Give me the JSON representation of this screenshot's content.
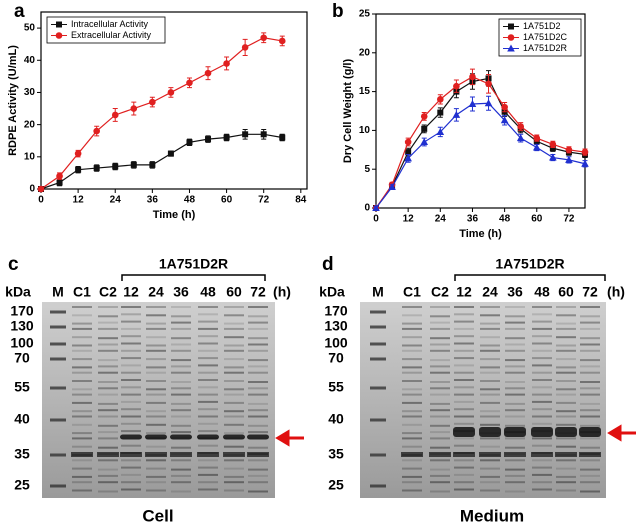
{
  "chart_data": [
    {
      "type": "line",
      "label": "a",
      "xlabel": "Time (h)",
      "ylabel": "RDPE Activity (U/mL)",
      "xlim": [
        0,
        86
      ],
      "xticks": [
        0,
        12,
        24,
        36,
        48,
        60,
        72,
        84
      ],
      "ylim": [
        0,
        55
      ],
      "yticks": [
        0,
        10,
        20,
        30,
        40,
        50
      ],
      "legend": "top-left",
      "x": [
        0,
        6,
        12,
        18,
        24,
        30,
        36,
        42,
        48,
        54,
        60,
        66,
        72,
        78
      ],
      "series": [
        {
          "name": "Intracellular Activity",
          "color": "#111111",
          "marker": "square",
          "values": [
            0,
            2,
            6,
            6.5,
            7,
            7.5,
            7.5,
            11,
            14.5,
            15.5,
            16,
            17,
            17,
            16
          ],
          "errors": [
            0.3,
            1,
            1,
            1,
            1,
            1,
            1,
            0.8,
            1,
            1,
            1,
            1.5,
            1.5,
            1
          ]
        },
        {
          "name": "Extracellular Activity",
          "color": "#e02020",
          "marker": "circle",
          "values": [
            0,
            4,
            11,
            18,
            23,
            25,
            27,
            30,
            33,
            36,
            39,
            44,
            47,
            46
          ],
          "errors": [
            0.3,
            1,
            1,
            1.5,
            2,
            2,
            1.5,
            1.5,
            1.5,
            2,
            2,
            2.5,
            1.5,
            1.5
          ]
        }
      ]
    },
    {
      "type": "line",
      "label": "b",
      "xlabel": "Time (h)",
      "ylabel": "Dry Cell Weight (g/l)",
      "xlim": [
        0,
        78
      ],
      "xticks": [
        0,
        12,
        24,
        36,
        48,
        60,
        72
      ],
      "ylim": [
        0,
        25
      ],
      "yticks": [
        0,
        5,
        10,
        15,
        20,
        25
      ],
      "legend": "top-right",
      "x": [
        0,
        6,
        12,
        18,
        24,
        30,
        36,
        42,
        48,
        54,
        60,
        66,
        72,
        78
      ],
      "series": [
        {
          "name": "1A751D2",
          "color": "#111111",
          "marker": "square",
          "values": [
            0,
            2.8,
            7.2,
            10.2,
            12.3,
            15,
            16.3,
            16.7,
            12.4,
            10.2,
            8.6,
            7.7,
            7.2,
            6.9
          ],
          "errors": [
            0.2,
            0.3,
            0.5,
            0.5,
            0.6,
            0.8,
            1,
            1,
            0.6,
            0.5,
            0.4,
            0.4,
            0.4,
            0.4
          ]
        },
        {
          "name": "1A751D2C",
          "color": "#e02020",
          "marker": "circle",
          "values": [
            0,
            3,
            8.5,
            11.8,
            14,
            15.7,
            16.9,
            16,
            13,
            10.5,
            9,
            8.2,
            7.5,
            7.2
          ],
          "errors": [
            0.2,
            0.3,
            0.5,
            0.5,
            0.6,
            0.8,
            1,
            1.2,
            0.6,
            0.5,
            0.4,
            0.4,
            0.4,
            0.4
          ]
        },
        {
          "name": "1A751D2R",
          "color": "#2030d0",
          "marker": "triangle",
          "values": [
            0,
            2.7,
            6.4,
            8.5,
            9.8,
            12,
            13.4,
            13.5,
            11.3,
            9,
            7.8,
            6.5,
            6.2,
            5.7
          ],
          "errors": [
            0.2,
            0.3,
            0.5,
            0.5,
            0.6,
            0.8,
            0.9,
            0.9,
            0.6,
            0.5,
            0.4,
            0.4,
            0.4,
            0.4
          ]
        }
      ]
    }
  ],
  "gels": [
    {
      "label": "c",
      "group": "1A751D2R",
      "unit": "kDa",
      "hours_unit": "(h)",
      "lanes": [
        "M",
        "C1",
        "C2",
        "12",
        "24",
        "36",
        "48",
        "60",
        "72"
      ],
      "markers": [
        170,
        130,
        100,
        70,
        55,
        40,
        35,
        25
      ],
      "caption": "Cell"
    },
    {
      "label": "d",
      "group": "1A751D2R",
      "unit": "kDa",
      "hours_unit": "(h)",
      "lanes": [
        "M",
        "C1",
        "C2",
        "12",
        "24",
        "36",
        "48",
        "60",
        "72"
      ],
      "markers": [
        170,
        130,
        100,
        70,
        55,
        40,
        35,
        25
      ],
      "caption": "Medium"
    }
  ]
}
